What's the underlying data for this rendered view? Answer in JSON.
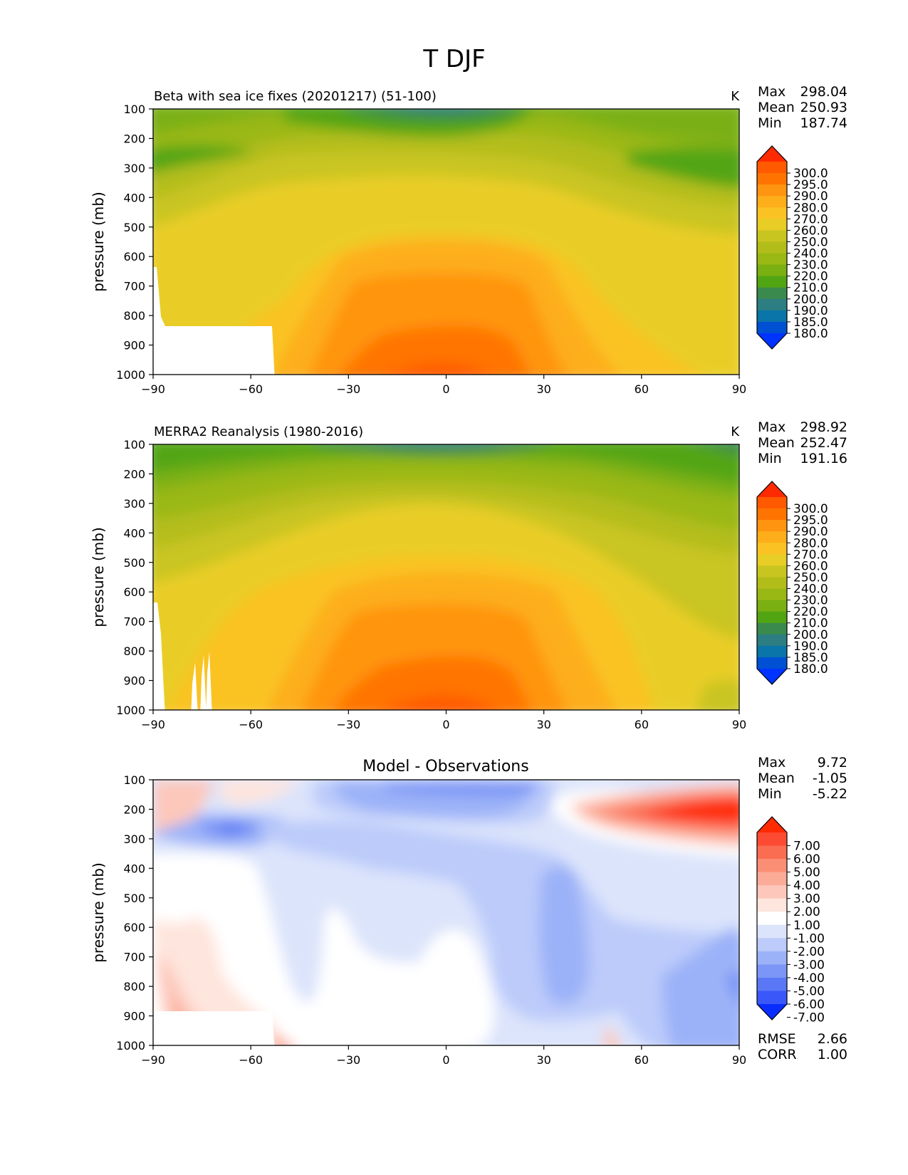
{
  "figure": {
    "title": "T DJF"
  },
  "chart_data": [
    {
      "type": "heatmap",
      "title": "Beta with sea ice fixes (20201217) (51-100)",
      "units": "K",
      "ylabel": "pressure (mb)",
      "xlabel": "",
      "xlim": [
        -90,
        90
      ],
      "ylim": [
        1000,
        100
      ],
      "xticks": [
        "−90",
        "−60",
        "−30",
        "0",
        "30",
        "60",
        "90"
      ],
      "yticks": [
        "100",
        "200",
        "300",
        "400",
        "500",
        "600",
        "700",
        "800",
        "900",
        "1000"
      ],
      "stats": [
        {
          "label": "Max",
          "value": "298.04"
        },
        {
          "label": "Mean",
          "value": "250.93"
        },
        {
          "label": "Min",
          "value": "187.74"
        }
      ],
      "colorbar": {
        "levels": [
          "300.0",
          "295.0",
          "290.0",
          "280.0",
          "270.0",
          "260.0",
          "250.0",
          "240.0",
          "230.0",
          "220.0",
          "210.0",
          "200.0",
          "190.0",
          "185.0",
          "180.0"
        ],
        "colors": [
          "#ff2a00",
          "#ff5a00",
          "#ff7400",
          "#ff9410",
          "#fdae1a",
          "#fac323",
          "#e9cd27",
          "#c9c520",
          "#b3bd1a",
          "#9ab814",
          "#7ab012",
          "#52a512",
          "#3a8a4e",
          "#2c7e82",
          "#0a75a8",
          "#0050d4",
          "#0033ff"
        ]
      }
    },
    {
      "type": "heatmap",
      "title": "MERRA2 Reanalysis (1980-2016)",
      "units": "K",
      "ylabel": "pressure (mb)",
      "xlabel": "",
      "xlim": [
        -90,
        90
      ],
      "ylim": [
        1000,
        100
      ],
      "xticks": [
        "−90",
        "−60",
        "−30",
        "0",
        "30",
        "60",
        "90"
      ],
      "yticks": [
        "100",
        "200",
        "300",
        "400",
        "500",
        "600",
        "700",
        "800",
        "900",
        "1000"
      ],
      "stats": [
        {
          "label": "Max",
          "value": "298.92"
        },
        {
          "label": "Mean",
          "value": "252.47"
        },
        {
          "label": "Min",
          "value": "191.16"
        }
      ],
      "colorbar": {
        "levels": [
          "300.0",
          "295.0",
          "290.0",
          "280.0",
          "270.0",
          "260.0",
          "250.0",
          "240.0",
          "230.0",
          "220.0",
          "210.0",
          "200.0",
          "190.0",
          "185.0",
          "180.0"
        ],
        "colors": [
          "#ff2a00",
          "#ff5a00",
          "#ff7400",
          "#ff9410",
          "#fdae1a",
          "#fac323",
          "#e9cd27",
          "#c9c520",
          "#b3bd1a",
          "#9ab814",
          "#7ab012",
          "#52a512",
          "#3a8a4e",
          "#2c7e82",
          "#0a75a8",
          "#0050d4",
          "#0033ff"
        ]
      }
    },
    {
      "type": "heatmap",
      "title": "Model - Observations",
      "units": "",
      "ylabel": "pressure (mb)",
      "xlabel": "",
      "xlim": [
        -90,
        90
      ],
      "ylim": [
        1000,
        100
      ],
      "xticks": [
        "−90",
        "−60",
        "−30",
        "0",
        "30",
        "60",
        "90"
      ],
      "yticks": [
        "100",
        "200",
        "300",
        "400",
        "500",
        "600",
        "700",
        "800",
        "900",
        "1000"
      ],
      "stats": [
        {
          "label": "Max",
          "value": "9.72"
        },
        {
          "label": "Mean",
          "value": "-1.05"
        },
        {
          "label": "Min",
          "value": "-5.22"
        }
      ],
      "bottom_stats": [
        {
          "label": "RMSE",
          "value": "2.66"
        },
        {
          "label": "CORR",
          "value": "1.00"
        }
      ],
      "colorbar": {
        "levels": [
          "7.00",
          "6.00",
          "5.00",
          "4.00",
          "3.00",
          "2.00",
          "1.00",
          "-1.00",
          "-2.00",
          "-3.00",
          "-4.00",
          "-5.00",
          "-6.00",
          "-7.00"
        ],
        "colors": [
          "#ff2a00",
          "#fd4b33",
          "#fb6d52",
          "#fb8f76",
          "#fcab98",
          "#fdc8bb",
          "#fee5dd",
          "#ffffff",
          "#dce4fb",
          "#bccbfa",
          "#9cb2f8",
          "#7b96f6",
          "#5a78f6",
          "#3a58fa",
          "#0a2dff"
        ]
      }
    }
  ]
}
